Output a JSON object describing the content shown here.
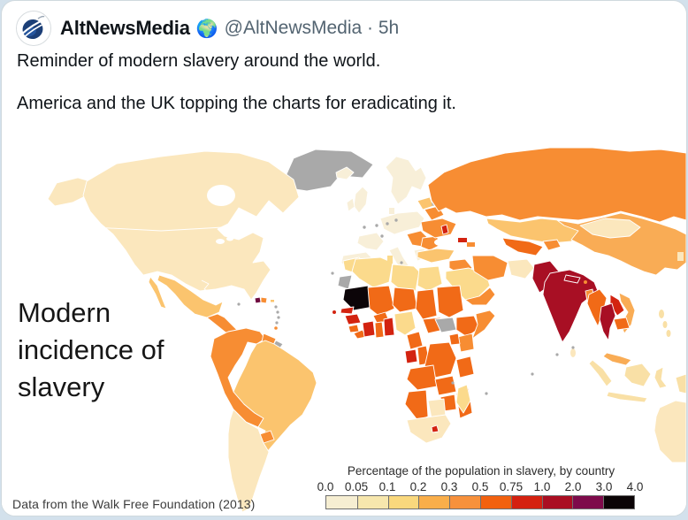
{
  "tweet": {
    "author": "AltNewsMedia",
    "author_emoji": "🌍",
    "handle_time": "@AltNewsMedia · 5h",
    "line1": "Reminder of modern slavery around the world.",
    "line2": "America and the UK topping the charts for eradicating it."
  },
  "map": {
    "title_line1": "Modern",
    "title_line2": "incidence of",
    "title_line3": "slavery",
    "footer": "Data from the Walk Free Foundation (2013)",
    "legend": {
      "title": "Percentage of the population in slavery, by country",
      "ticks": [
        "0.0",
        "0.05",
        "0.1",
        "0.2",
        "0.3",
        "0.5",
        "0.75",
        "1.0",
        "2.0",
        "3.0",
        "4.0"
      ],
      "colors": [
        "#f6eed2",
        "#f7e7ad",
        "#f9d87d",
        "#f9ae4a",
        "#f7913c",
        "#f2610f",
        "#d42110",
        "#aa0e22",
        "#7e0b4b",
        "#0b0406"
      ]
    },
    "palette": {
      "cream_eu": "#f8efd8",
      "cream_na": "#fbe7bd",
      "creamyellow": "#f9e0a6",
      "yellow": "#fbda8c",
      "amber": "#fbc46e",
      "lightorange": "#f9ac55",
      "orange": "#f78d33",
      "darkorange": "#f16a17",
      "red": "#d32310",
      "crimson": "#a80f24",
      "maroon": "#6f0b3f",
      "black": "#0c0508",
      "gray": "#a9a9a9",
      "white": "#ffffff"
    },
    "regions": {
      "usa_canada": "cream_na",
      "greenland": "gray",
      "mexico": "amber",
      "central_america": "orange",
      "cuba": "white",
      "haiti": "maroon",
      "dominican_republic": "orange",
      "andes_colombia_venezuela_peru_bolivia": "orange",
      "brazil": "amber",
      "argentina_chile": "cream_na",
      "guyana_suriname": "orange",
      "french_guiana": "gray",
      "paraguay": "orange",
      "western_europe_uk_scandinavia": "cream_eu",
      "baltics": "amber",
      "belarus": "orange",
      "ukraine": "orange",
      "moldova": "red",
      "balkans": "orange",
      "russia": "orange",
      "turkey": "amber",
      "kazakhstan": "amber",
      "uzbekistan_turkmenistan": "darkorange",
      "georgia": "red",
      "iran": "orange",
      "iraq_syria": "orange",
      "saudi_arabia": "yellow",
      "yemen": "orange",
      "afghanistan": "cream_na",
      "pakistan": "crimson",
      "india": "crimson",
      "nepal": "crimson",
      "bangladesh": "orange",
      "china": "lightorange",
      "mongolia": "cream_na",
      "myanmar": "darkorange",
      "thailand": "crimson",
      "laos": "red",
      "cambodia": "darkorange",
      "vietnam": "lightorange",
      "malaysia": "lightorange",
      "indonesia": "creamyellow",
      "philippines": "creamyellow",
      "australia": "cream_na",
      "morocco_algeria_libya_egypt": "yellow",
      "western_sahara": "gray",
      "mauritania": "black",
      "mali_niger_chad_sudan_sahel": "darkorange",
      "senegal": "red",
      "guinea": "red",
      "ivory_coast": "red",
      "togo_benin": "red",
      "ghana": "darkorange",
      "nigeria": "yellow",
      "gabon": "red",
      "congo_drc": "darkorange",
      "south_sudan": "gray",
      "ethiopia": "darkorange",
      "somalia": "orange",
      "kenya": "orange",
      "tanzania_zambia_angola_namibia": "darkorange",
      "mozambique_zimbabwe": "darkorange",
      "botswana": "cream_na",
      "south_africa": "cream_na",
      "lesotho": "red",
      "madagascar": "yellow",
      "cape_verde": "red"
    }
  },
  "colors": {
    "card_border": "#cfd9de",
    "author_color": "#0f1419",
    "handle_color": "#536471",
    "page_background": "#d3e1ec"
  }
}
